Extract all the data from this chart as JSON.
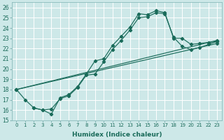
{
  "xlabel": "Humidex (Indice chaleur)",
  "xlim": [
    -0.5,
    23.5
  ],
  "ylim": [
    15,
    26.5
  ],
  "yticks": [
    15,
    16,
    17,
    18,
    19,
    20,
    21,
    22,
    23,
    24,
    25,
    26
  ],
  "xticks": [
    0,
    1,
    2,
    3,
    4,
    5,
    6,
    7,
    8,
    9,
    10,
    11,
    12,
    13,
    14,
    15,
    16,
    17,
    18,
    19,
    20,
    21,
    22,
    23
  ],
  "background_color": "#cde8e8",
  "grid_color": "#b8d8d8",
  "line_color": "#1a6b5a",
  "line1_x": [
    0,
    1,
    2,
    3,
    4,
    5,
    6,
    7,
    8,
    9,
    10,
    11,
    12,
    13,
    14,
    15,
    16,
    17,
    18,
    19,
    20,
    21,
    22,
    23
  ],
  "line1_y": [
    18,
    17,
    16.2,
    16,
    15.6,
    17.2,
    17.5,
    18.3,
    19.5,
    20.8,
    21.0,
    22.3,
    23.2,
    24.1,
    25.4,
    25.3,
    25.7,
    25.5,
    23.0,
    23.0,
    22.4,
    22.5,
    22.6,
    22.7
  ],
  "line2_x": [
    2,
    3,
    4,
    5,
    6,
    7,
    8,
    9,
    10,
    11,
    12,
    13,
    14,
    15,
    16,
    17,
    18,
    19,
    20,
    21,
    22,
    23
  ],
  "line2_y": [
    16.2,
    16.0,
    16.1,
    17.1,
    17.4,
    18.2,
    19.4,
    19.5,
    20.7,
    21.9,
    22.8,
    23.8,
    25.0,
    25.1,
    25.5,
    25.4,
    23.1,
    22.2,
    21.9,
    22.1,
    22.4,
    22.7
  ],
  "line3_x": [
    0,
    23
  ],
  "line3_y": [
    18.0,
    22.8
  ],
  "line4_x": [
    0,
    23
  ],
  "line4_y": [
    18.0,
    22.5
  ]
}
